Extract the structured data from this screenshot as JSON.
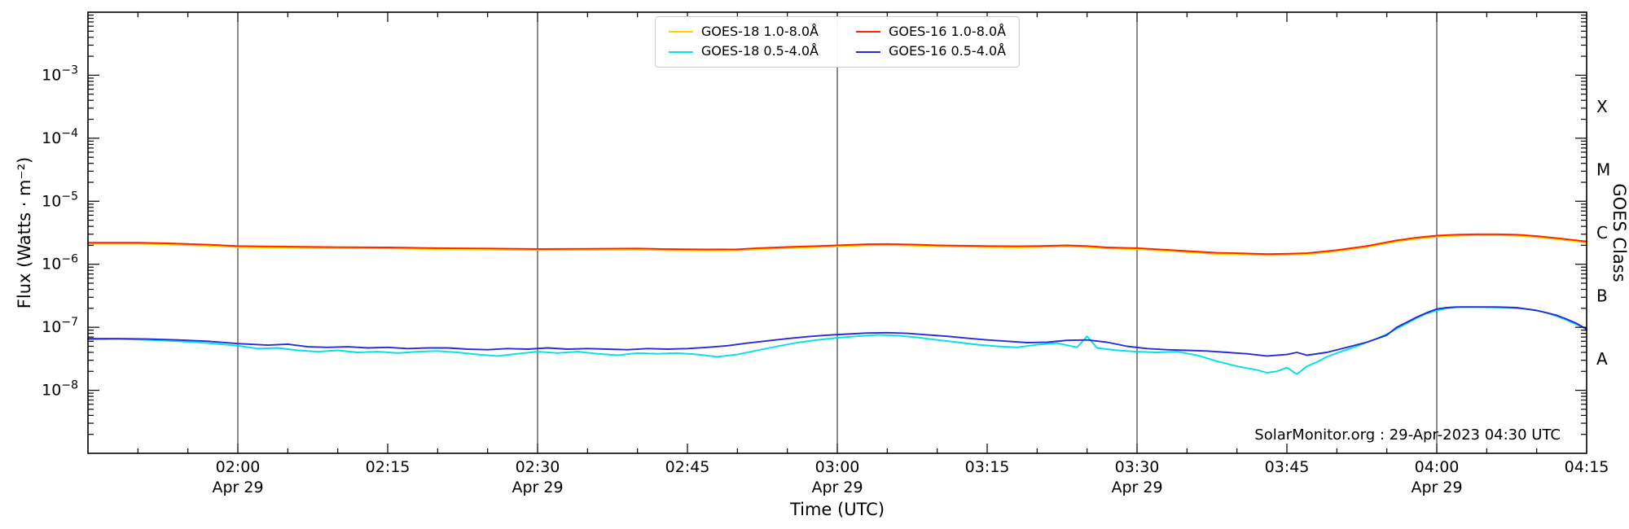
{
  "chart_data": {
    "type": "line",
    "title": "",
    "xlabel": "Time (UTC)",
    "ylabel": "Flux (Watts · m⁻²)",
    "ylabel_right": "GOES Class",
    "annotation": "SolarMonitor.org : 29-Apr-2023 04:30 UTC",
    "x_domain_minutes": [
      0,
      150
    ],
    "x_start_time": "01:45",
    "x_end_time": "04:15",
    "ylim": [
      1e-09,
      0.01
    ],
    "y_scale": "log",
    "grid": "vertical-only",
    "legend_position": "top-center",
    "y_tick_exponents": [
      -3,
      -4,
      -5,
      -6,
      -7,
      -8
    ],
    "x_ticks": [
      {
        "t": 15,
        "label": "02:00",
        "sub": "Apr 29"
      },
      {
        "t": 30,
        "label": "02:15",
        "sub": ""
      },
      {
        "t": 45,
        "label": "02:30",
        "sub": "Apr 29"
      },
      {
        "t": 60,
        "label": "02:45",
        "sub": ""
      },
      {
        "t": 75,
        "label": "03:00",
        "sub": "Apr 29"
      },
      {
        "t": 90,
        "label": "03:15",
        "sub": ""
      },
      {
        "t": 105,
        "label": "03:30",
        "sub": "Apr 29"
      },
      {
        "t": 120,
        "label": "03:45",
        "sub": ""
      },
      {
        "t": 135,
        "label": "04:00",
        "sub": "Apr 29"
      },
      {
        "t": 150,
        "label": "04:15",
        "sub": ""
      }
    ],
    "gridline_minutes": [
      15,
      45,
      75,
      105,
      135
    ],
    "goes_classes": [
      {
        "label": "X",
        "log_center": -3.5
      },
      {
        "label": "M",
        "log_center": -4.5
      },
      {
        "label": "C",
        "log_center": -5.5
      },
      {
        "label": "B",
        "log_center": -6.5
      },
      {
        "label": "A",
        "log_center": -7.5
      }
    ],
    "series": [
      {
        "name": "GOES-18 1.0-8.0Å",
        "color": "#ffd000",
        "points": [
          [
            0,
            2.11e-06
          ],
          [
            5,
            2.11e-06
          ],
          [
            8,
            2.06e-06
          ],
          [
            12,
            1.97e-06
          ],
          [
            15,
            1.87e-06
          ],
          [
            20,
            1.82e-06
          ],
          [
            25,
            1.8e-06
          ],
          [
            30,
            1.78e-06
          ],
          [
            35,
            1.73e-06
          ],
          [
            40,
            1.71e-06
          ],
          [
            45,
            1.68e-06
          ],
          [
            50,
            1.69e-06
          ],
          [
            55,
            1.71e-06
          ],
          [
            58,
            1.67e-06
          ],
          [
            62,
            1.65e-06
          ],
          [
            65,
            1.66e-06
          ],
          [
            67,
            1.73e-06
          ],
          [
            70,
            1.8e-06
          ],
          [
            73,
            1.87e-06
          ],
          [
            75,
            1.92e-06
          ],
          [
            78,
            2e-06
          ],
          [
            80,
            2.02e-06
          ],
          [
            83,
            1.97e-06
          ],
          [
            85,
            1.92e-06
          ],
          [
            88,
            1.89e-06
          ],
          [
            90,
            1.87e-06
          ],
          [
            93,
            1.85e-06
          ],
          [
            95,
            1.87e-06
          ],
          [
            98,
            1.92e-06
          ],
          [
            100,
            1.87e-06
          ],
          [
            102,
            1.78e-06
          ],
          [
            105,
            1.73e-06
          ],
          [
            108,
            1.63e-06
          ],
          [
            110,
            1.56e-06
          ],
          [
            113,
            1.46e-06
          ],
          [
            115,
            1.44e-06
          ],
          [
            118,
            1.39e-06
          ],
          [
            120,
            1.41e-06
          ],
          [
            122,
            1.44e-06
          ],
          [
            125,
            1.61e-06
          ],
          [
            128,
            1.87e-06
          ],
          [
            131,
            2.3e-06
          ],
          [
            133,
            2.54e-06
          ],
          [
            135,
            2.74e-06
          ],
          [
            137,
            2.83e-06
          ],
          [
            139,
            2.88e-06
          ],
          [
            141,
            2.88e-06
          ],
          [
            143,
            2.83e-06
          ],
          [
            145,
            2.69e-06
          ],
          [
            147,
            2.5e-06
          ],
          [
            149,
            2.3e-06
          ],
          [
            150,
            2.21e-06
          ]
        ]
      },
      {
        "name": "GOES-18 0.5-4.0Å",
        "color": "#00e0ea",
        "points": [
          [
            0,
            6.4e-08
          ],
          [
            3,
            6.5e-08
          ],
          [
            6,
            6.3e-08
          ],
          [
            9,
            6e-08
          ],
          [
            12,
            5.6e-08
          ],
          [
            15,
            5.1e-08
          ],
          [
            17,
            4.6e-08
          ],
          [
            19,
            4.7e-08
          ],
          [
            21,
            4.3e-08
          ],
          [
            23,
            4.1e-08
          ],
          [
            25,
            4.3e-08
          ],
          [
            27,
            4e-08
          ],
          [
            29,
            4.1e-08
          ],
          [
            31,
            3.9e-08
          ],
          [
            33,
            4.1e-08
          ],
          [
            35,
            4.2e-08
          ],
          [
            37,
            4e-08
          ],
          [
            39,
            3.7e-08
          ],
          [
            41,
            3.5e-08
          ],
          [
            43,
            3.8e-08
          ],
          [
            45,
            4.1e-08
          ],
          [
            47,
            3.9e-08
          ],
          [
            49,
            4.1e-08
          ],
          [
            51,
            3.8e-08
          ],
          [
            53,
            3.6e-08
          ],
          [
            55,
            3.9e-08
          ],
          [
            57,
            3.8e-08
          ],
          [
            59,
            3.9e-08
          ],
          [
            61,
            3.7e-08
          ],
          [
            63,
            3.4e-08
          ],
          [
            65,
            3.7e-08
          ],
          [
            67,
            4.3e-08
          ],
          [
            69,
            5e-08
          ],
          [
            71,
            5.7e-08
          ],
          [
            73,
            6.3e-08
          ],
          [
            75,
            6.8e-08
          ],
          [
            77,
            7.2e-08
          ],
          [
            79,
            7.6e-08
          ],
          [
            81,
            7.4e-08
          ],
          [
            83,
            6.9e-08
          ],
          [
            85,
            6.3e-08
          ],
          [
            87,
            5.8e-08
          ],
          [
            89,
            5.3e-08
          ],
          [
            91,
            5e-08
          ],
          [
            93,
            4.8e-08
          ],
          [
            95,
            5.3e-08
          ],
          [
            97,
            5.6e-08
          ],
          [
            99,
            4.8e-08
          ],
          [
            100,
            7.2e-08
          ],
          [
            101,
            4.7e-08
          ],
          [
            103,
            4.3e-08
          ],
          [
            105,
            4.1e-08
          ],
          [
            107,
            4e-08
          ],
          [
            109,
            4.1e-08
          ],
          [
            111,
            3.6e-08
          ],
          [
            113,
            2.9e-08
          ],
          [
            115,
            2.4e-08
          ],
          [
            117,
            2.1e-08
          ],
          [
            118,
            1.9e-08
          ],
          [
            119,
            2e-08
          ],
          [
            120,
            2.3e-08
          ],
          [
            121,
            1.8e-08
          ],
          [
            122,
            2.4e-08
          ],
          [
            123,
            2.8e-08
          ],
          [
            124,
            3.4e-08
          ],
          [
            125,
            3.9e-08
          ],
          [
            126,
            4.4e-08
          ],
          [
            127,
            5e-08
          ],
          [
            128,
            5.8e-08
          ],
          [
            129,
            6.6e-08
          ],
          [
            130,
            7.8e-08
          ],
          [
            131,
            9.5e-08
          ],
          [
            132,
            1.15e-07
          ],
          [
            133,
            1.4e-07
          ],
          [
            134,
            1.65e-07
          ],
          [
            135,
            1.85e-07
          ],
          [
            136,
            2e-07
          ],
          [
            137,
            2.08e-07
          ],
          [
            138,
            2.1e-07
          ],
          [
            140,
            2.08e-07
          ],
          [
            142,
            2.05e-07
          ],
          [
            144,
            1.95e-07
          ],
          [
            145,
            1.85e-07
          ],
          [
            146,
            1.7e-07
          ],
          [
            147,
            1.5e-07
          ],
          [
            148,
            1.3e-07
          ],
          [
            149,
            1.1e-07
          ],
          [
            150,
            9.6e-08
          ]
        ]
      },
      {
        "name": "GOES-16 1.0-8.0Å",
        "color": "#ff2200",
        "points": [
          [
            0,
            2.2e-06
          ],
          [
            5,
            2.2e-06
          ],
          [
            8,
            2.15e-06
          ],
          [
            12,
            2.05e-06
          ],
          [
            15,
            1.95e-06
          ],
          [
            20,
            1.9e-06
          ],
          [
            25,
            1.87e-06
          ],
          [
            30,
            1.85e-06
          ],
          [
            35,
            1.8e-06
          ],
          [
            40,
            1.78e-06
          ],
          [
            45,
            1.75e-06
          ],
          [
            50,
            1.76e-06
          ],
          [
            55,
            1.78e-06
          ],
          [
            58,
            1.74e-06
          ],
          [
            62,
            1.72e-06
          ],
          [
            65,
            1.73e-06
          ],
          [
            67,
            1.8e-06
          ],
          [
            70,
            1.88e-06
          ],
          [
            73,
            1.95e-06
          ],
          [
            75,
            2e-06
          ],
          [
            78,
            2.08e-06
          ],
          [
            80,
            2.1e-06
          ],
          [
            83,
            2.05e-06
          ],
          [
            85,
            2e-06
          ],
          [
            88,
            1.97e-06
          ],
          [
            90,
            1.95e-06
          ],
          [
            93,
            1.93e-06
          ],
          [
            95,
            1.95e-06
          ],
          [
            98,
            2e-06
          ],
          [
            100,
            1.95e-06
          ],
          [
            102,
            1.85e-06
          ],
          [
            105,
            1.8e-06
          ],
          [
            108,
            1.7e-06
          ],
          [
            110,
            1.62e-06
          ],
          [
            113,
            1.52e-06
          ],
          [
            115,
            1.5e-06
          ],
          [
            118,
            1.45e-06
          ],
          [
            120,
            1.47e-06
          ],
          [
            122,
            1.5e-06
          ],
          [
            125,
            1.68e-06
          ],
          [
            128,
            1.95e-06
          ],
          [
            131,
            2.4e-06
          ],
          [
            133,
            2.65e-06
          ],
          [
            135,
            2.85e-06
          ],
          [
            137,
            2.95e-06
          ],
          [
            139,
            3e-06
          ],
          [
            141,
            3e-06
          ],
          [
            143,
            2.95e-06
          ],
          [
            145,
            2.8e-06
          ],
          [
            147,
            2.6e-06
          ],
          [
            149,
            2.4e-06
          ],
          [
            150,
            2.3e-06
          ]
        ]
      },
      {
        "name": "GOES-16 0.5-4.0Å",
        "color": "#2a2ad6",
        "points": [
          [
            0,
            6.6e-08
          ],
          [
            3,
            6.6e-08
          ],
          [
            6,
            6.5e-08
          ],
          [
            9,
            6.3e-08
          ],
          [
            12,
            6e-08
          ],
          [
            15,
            5.5e-08
          ],
          [
            18,
            5.2e-08
          ],
          [
            20,
            5.4e-08
          ],
          [
            22,
            4.9e-08
          ],
          [
            24,
            4.8e-08
          ],
          [
            26,
            4.9e-08
          ],
          [
            28,
            4.7e-08
          ],
          [
            30,
            4.8e-08
          ],
          [
            32,
            4.6e-08
          ],
          [
            34,
            4.7e-08
          ],
          [
            36,
            4.7e-08
          ],
          [
            38,
            4.5e-08
          ],
          [
            40,
            4.4e-08
          ],
          [
            42,
            4.6e-08
          ],
          [
            44,
            4.5e-08
          ],
          [
            46,
            4.7e-08
          ],
          [
            48,
            4.5e-08
          ],
          [
            50,
            4.6e-08
          ],
          [
            52,
            4.5e-08
          ],
          [
            54,
            4.4e-08
          ],
          [
            56,
            4.6e-08
          ],
          [
            58,
            4.5e-08
          ],
          [
            60,
            4.6e-08
          ],
          [
            62,
            4.8e-08
          ],
          [
            64,
            5.1e-08
          ],
          [
            66,
            5.6e-08
          ],
          [
            68,
            6.1e-08
          ],
          [
            70,
            6.6e-08
          ],
          [
            72,
            7.1e-08
          ],
          [
            74,
            7.5e-08
          ],
          [
            76,
            7.8e-08
          ],
          [
            78,
            8.1e-08
          ],
          [
            80,
            8.2e-08
          ],
          [
            82,
            8e-08
          ],
          [
            84,
            7.6e-08
          ],
          [
            86,
            7.2e-08
          ],
          [
            88,
            6.7e-08
          ],
          [
            90,
            6.3e-08
          ],
          [
            92,
            6e-08
          ],
          [
            94,
            5.7e-08
          ],
          [
            96,
            5.8e-08
          ],
          [
            98,
            6.2e-08
          ],
          [
            100,
            6.3e-08
          ],
          [
            102,
            5.8e-08
          ],
          [
            104,
            5e-08
          ],
          [
            106,
            4.6e-08
          ],
          [
            108,
            4.4e-08
          ],
          [
            110,
            4.3e-08
          ],
          [
            112,
            4.2e-08
          ],
          [
            114,
            4e-08
          ],
          [
            116,
            3.8e-08
          ],
          [
            118,
            3.5e-08
          ],
          [
            120,
            3.7e-08
          ],
          [
            121,
            4e-08
          ],
          [
            122,
            3.6e-08
          ],
          [
            124,
            4e-08
          ],
          [
            126,
            4.8e-08
          ],
          [
            128,
            5.8e-08
          ],
          [
            130,
            7.5e-08
          ],
          [
            131,
            1e-07
          ],
          [
            132,
            1.2e-07
          ],
          [
            133,
            1.45e-07
          ],
          [
            134,
            1.7e-07
          ],
          [
            135,
            1.95e-07
          ],
          [
            136,
            2.05e-07
          ],
          [
            137,
            2.1e-07
          ],
          [
            139,
            2.1e-07
          ],
          [
            141,
            2.1e-07
          ],
          [
            143,
            2.05e-07
          ],
          [
            144,
            1.95e-07
          ],
          [
            145,
            1.85e-07
          ],
          [
            146,
            1.7e-07
          ],
          [
            147,
            1.55e-07
          ],
          [
            148,
            1.35e-07
          ],
          [
            149,
            1.15e-07
          ],
          [
            150,
            9.3e-08
          ]
        ]
      }
    ]
  }
}
